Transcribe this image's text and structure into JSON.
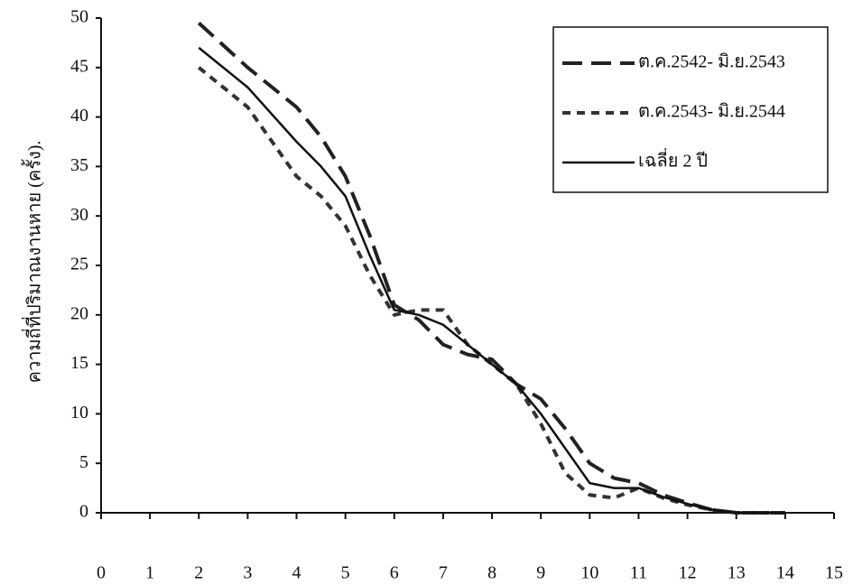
{
  "chart_data": {
    "type": "line",
    "y_label": "ความถี่ที่ปริมาณงานหาย (ครั้ง).",
    "x": [
      2,
      3,
      4,
      4.5,
      5,
      5.5,
      6,
      6.5,
      7,
      7.5,
      8,
      8.5,
      9,
      9.5,
      10,
      10.5,
      11,
      11.5,
      12,
      12.5,
      13,
      14
    ],
    "series": [
      {
        "name": "ต.ค.2542- มิ.ย.2543",
        "color": "#222222",
        "dash": "long",
        "values": [
          49.5,
          45,
          41,
          38,
          34,
          28,
          21,
          19.5,
          17,
          16,
          15.5,
          13,
          11.5,
          8.5,
          5,
          3.5,
          3,
          1.8,
          1,
          0.3,
          0,
          0
        ]
      },
      {
        "name": "ต.ค.2543- มิ.ย.2544",
        "color": "#333333",
        "dash": "short",
        "values": [
          45,
          41,
          34,
          32,
          29,
          24,
          20,
          20.5,
          20.5,
          17,
          15,
          13,
          9,
          4,
          1.8,
          1.5,
          2.5,
          1.5,
          0.8,
          0.3,
          0,
          0
        ]
      },
      {
        "name": "เฉลี่ย 2 ปี",
        "color": "#111111",
        "dash": "solid",
        "values": [
          47,
          43,
          37.5,
          35,
          32,
          26,
          20.5,
          20,
          19,
          17,
          15,
          13,
          10,
          6.5,
          3,
          2.5,
          2.5,
          1.6,
          0.9,
          0.3,
          0,
          0
        ]
      }
    ],
    "xlim": [
      0,
      15
    ],
    "xticks": [
      0,
      1,
      2,
      3,
      4,
      5,
      6,
      7,
      8,
      9,
      10,
      11,
      12,
      13,
      14,
      15
    ],
    "ylim": [
      0,
      50
    ],
    "yticks": [
      0,
      5,
      10,
      15,
      20,
      25,
      30,
      35,
      40,
      45,
      50
    ],
    "grid": false,
    "legend": "top-right"
  }
}
